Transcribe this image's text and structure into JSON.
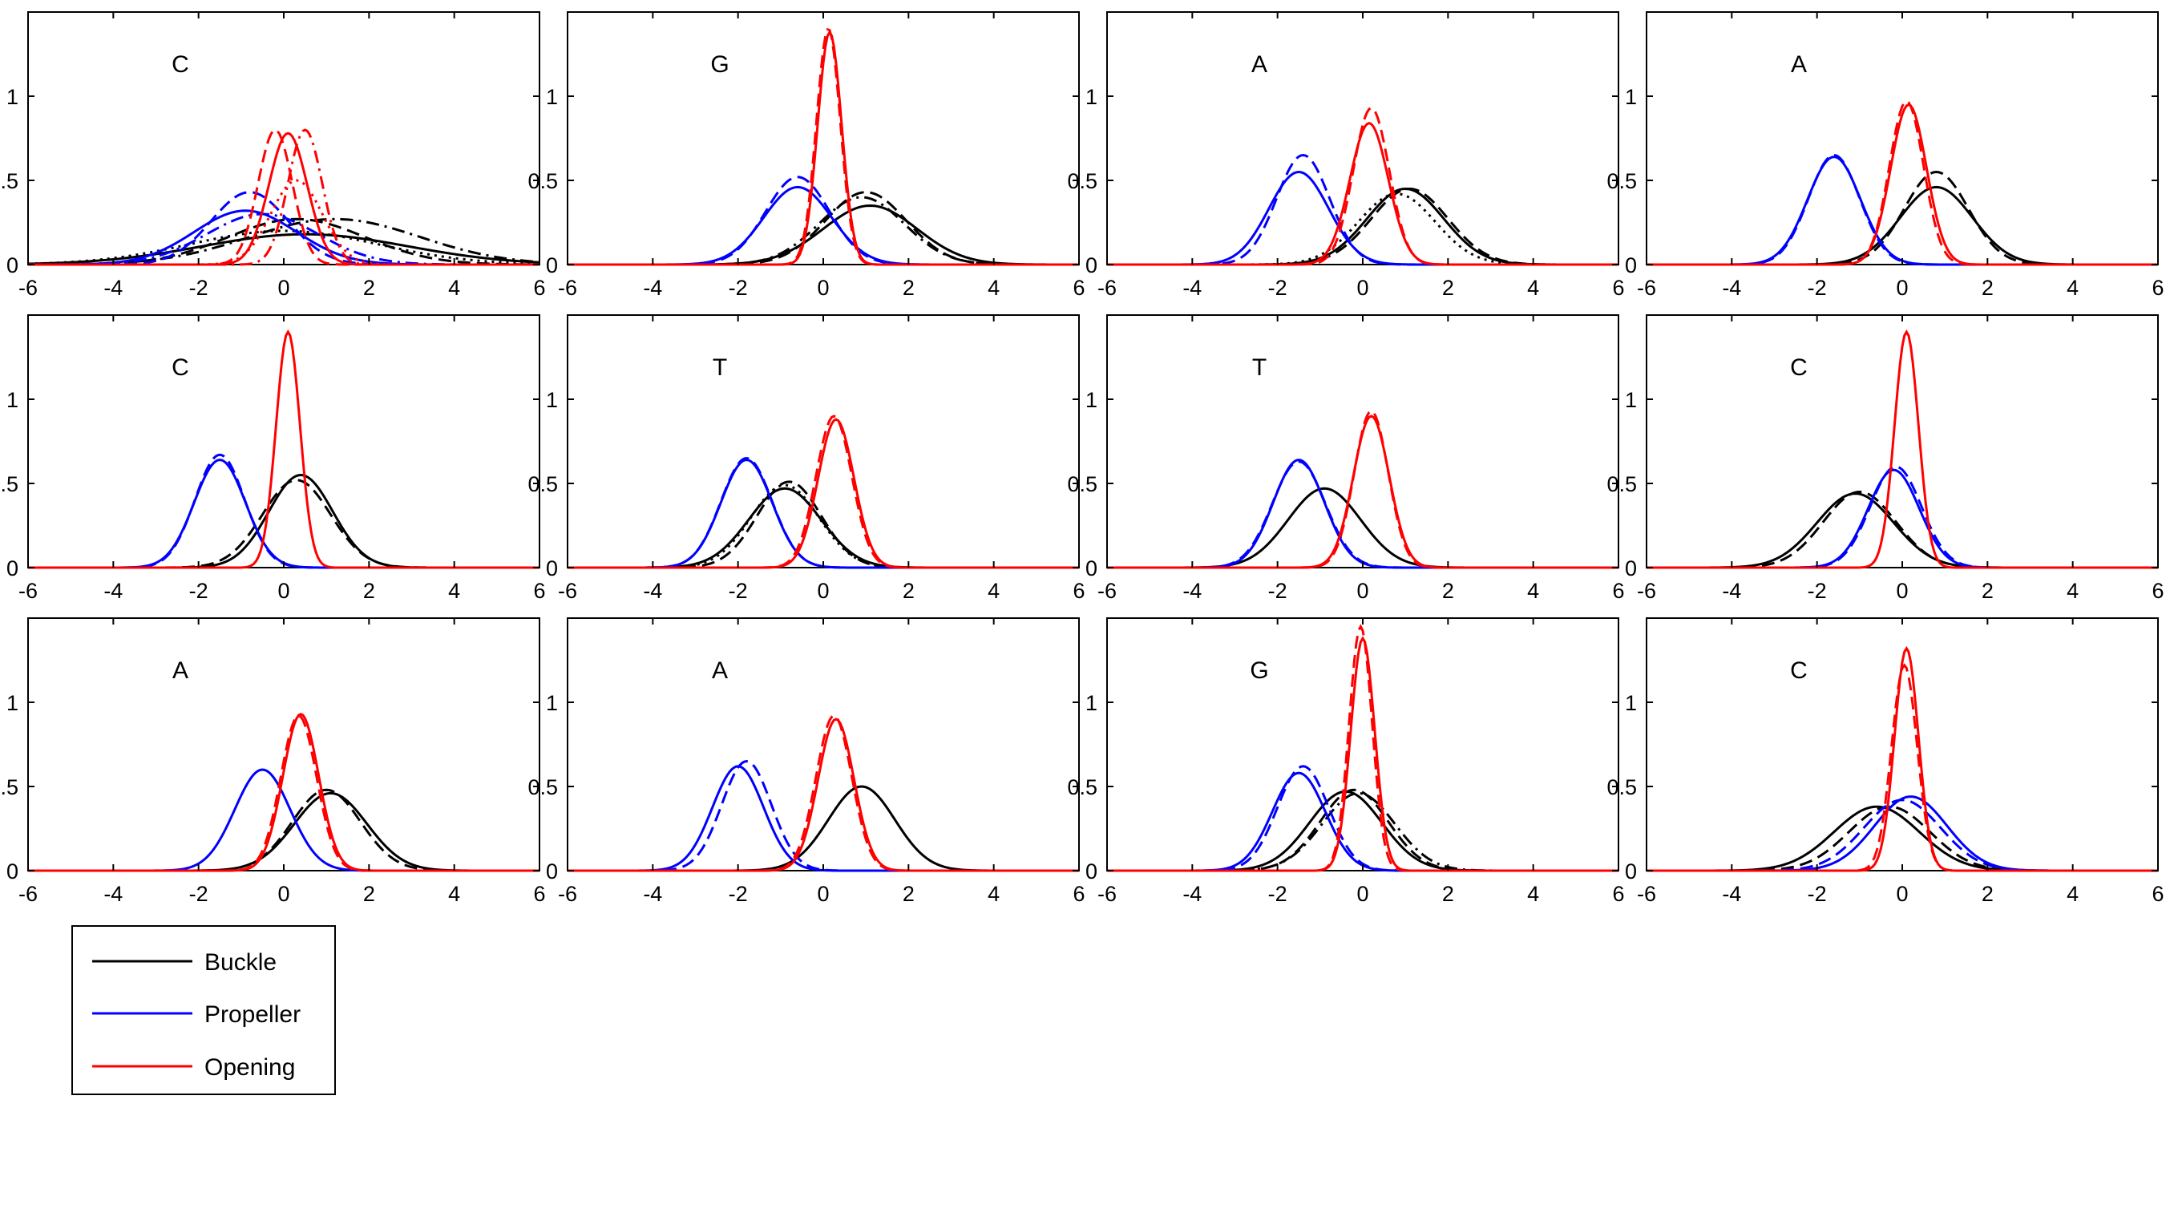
{
  "figure": {
    "legend": [
      {
        "label": "Buckle",
        "color": "#000000"
      },
      {
        "label": "Propeller",
        "color": "#0000ff"
      },
      {
        "label": "Opening",
        "color": "#ff0000"
      }
    ]
  },
  "chart_data": [
    {
      "type": "line",
      "title": "",
      "panel_label": "C",
      "xlim": [
        -6,
        6
      ],
      "ylim": [
        0,
        1.5
      ],
      "xticks": [
        -6,
        -4,
        -2,
        0,
        2,
        4,
        6
      ],
      "yticks": [
        0,
        0.5,
        1
      ],
      "grid": false,
      "series": [
        {
          "name": "Buckle",
          "color": "#000000",
          "variants": [
            {
              "style": "solid",
              "peak": 0.18,
              "mean": 0.5,
              "sd": 2.4
            },
            {
              "style": "dashed",
              "peak": 0.27,
              "mean": 0.3,
              "sd": 1.6
            },
            {
              "style": "dashdot",
              "peak": 0.27,
              "mean": 1.2,
              "sd": 2.0
            },
            {
              "style": "dotted",
              "peak": 0.2,
              "mean": 0.0,
              "sd": 2.2
            }
          ]
        },
        {
          "name": "Propeller",
          "color": "#0000ff",
          "variants": [
            {
              "style": "solid",
              "peak": 0.32,
              "mean": -0.9,
              "sd": 1.2
            },
            {
              "style": "dashed",
              "peak": 0.43,
              "mean": -0.8,
              "sd": 0.9
            },
            {
              "style": "dashdot",
              "peak": 0.3,
              "mean": -0.5,
              "sd": 1.3
            }
          ]
        },
        {
          "name": "Opening",
          "color": "#ff0000",
          "variants": [
            {
              "style": "solid",
              "peak": 0.78,
              "mean": 0.1,
              "sd": 0.45
            },
            {
              "style": "dashed",
              "peak": 0.8,
              "mean": -0.2,
              "sd": 0.4
            },
            {
              "style": "dashdot",
              "peak": 0.8,
              "mean": 0.5,
              "sd": 0.4
            },
            {
              "style": "dotted",
              "peak": 0.5,
              "mean": 0.3,
              "sd": 0.6
            }
          ]
        }
      ]
    },
    {
      "type": "line",
      "title": "",
      "panel_label": "G",
      "xlim": [
        -6,
        6
      ],
      "ylim": [
        0,
        1.5
      ],
      "xticks": [
        -6,
        -4,
        -2,
        0,
        2,
        4,
        6
      ],
      "yticks": [
        0,
        0.5,
        1
      ],
      "grid": false,
      "series": [
        {
          "name": "Buckle",
          "color": "#000000",
          "variants": [
            {
              "style": "solid",
              "peak": 0.35,
              "mean": 1.1,
              "sd": 1.1
            },
            {
              "style": "dashed",
              "peak": 0.43,
              "mean": 1.0,
              "sd": 0.95
            },
            {
              "style": "dashdot",
              "peak": 0.4,
              "mean": 0.9,
              "sd": 1.0
            }
          ]
        },
        {
          "name": "Propeller",
          "color": "#0000ff",
          "variants": [
            {
              "style": "solid",
              "peak": 0.46,
              "mean": -0.6,
              "sd": 0.8
            },
            {
              "style": "dashed",
              "peak": 0.52,
              "mean": -0.6,
              "sd": 0.75
            }
          ]
        },
        {
          "name": "Opening",
          "color": "#ff0000",
          "variants": [
            {
              "style": "solid",
              "peak": 1.38,
              "mean": 0.15,
              "sd": 0.28
            },
            {
              "style": "dashed",
              "peak": 1.4,
              "mean": 0.12,
              "sd": 0.28
            }
          ]
        }
      ]
    },
    {
      "type": "line",
      "title": "",
      "panel_label": "A",
      "xlim": [
        -6,
        6
      ],
      "ylim": [
        0,
        1.5
      ],
      "xticks": [
        -6,
        -4,
        -2,
        0,
        2,
        4,
        6
      ],
      "yticks": [
        0,
        0.5,
        1
      ],
      "grid": false,
      "series": [
        {
          "name": "Buckle",
          "color": "#000000",
          "variants": [
            {
              "style": "solid",
              "peak": 0.45,
              "mean": 1.0,
              "sd": 0.9
            },
            {
              "style": "dashed",
              "peak": 0.45,
              "mean": 1.1,
              "sd": 0.9
            },
            {
              "style": "dotted",
              "peak": 0.42,
              "mean": 0.8,
              "sd": 0.9
            }
          ]
        },
        {
          "name": "Propeller",
          "color": "#0000ff",
          "variants": [
            {
              "style": "solid",
              "peak": 0.55,
              "mean": -1.5,
              "sd": 0.7
            },
            {
              "style": "dashed",
              "peak": 0.65,
              "mean": -1.4,
              "sd": 0.62
            }
          ]
        },
        {
          "name": "Opening",
          "color": "#ff0000",
          "variants": [
            {
              "style": "solid",
              "peak": 0.84,
              "mean": 0.15,
              "sd": 0.45
            },
            {
              "style": "dashed",
              "peak": 0.93,
              "mean": 0.2,
              "sd": 0.42
            }
          ]
        }
      ]
    },
    {
      "type": "line",
      "title": "",
      "panel_label": "A",
      "xlim": [
        -6,
        6
      ],
      "ylim": [
        0,
        1.5
      ],
      "xticks": [
        -6,
        -4,
        -2,
        0,
        2,
        4,
        6
      ],
      "yticks": [
        0,
        0.5,
        1
      ],
      "grid": false,
      "series": [
        {
          "name": "Buckle",
          "color": "#000000",
          "variants": [
            {
              "style": "solid",
              "peak": 0.46,
              "mean": 0.8,
              "sd": 0.85
            },
            {
              "style": "dashed",
              "peak": 0.55,
              "mean": 0.8,
              "sd": 0.75
            }
          ]
        },
        {
          "name": "Propeller",
          "color": "#0000ff",
          "variants": [
            {
              "style": "solid",
              "peak": 0.64,
              "mean": -1.6,
              "sd": 0.62
            },
            {
              "style": "dashed",
              "peak": 0.65,
              "mean": -1.6,
              "sd": 0.6
            }
          ]
        },
        {
          "name": "Opening",
          "color": "#ff0000",
          "variants": [
            {
              "style": "solid",
              "peak": 0.95,
              "mean": 0.15,
              "sd": 0.42
            },
            {
              "style": "dashed",
              "peak": 0.97,
              "mean": 0.1,
              "sd": 0.4
            }
          ]
        }
      ]
    },
    {
      "type": "line",
      "title": "",
      "panel_label": "C",
      "xlim": [
        -6,
        6
      ],
      "ylim": [
        0,
        1.5
      ],
      "xticks": [
        -6,
        -4,
        -2,
        0,
        2,
        4,
        6
      ],
      "yticks": [
        0,
        0.5,
        1
      ],
      "grid": false,
      "series": [
        {
          "name": "Buckle",
          "color": "#000000",
          "variants": [
            {
              "style": "solid",
              "peak": 0.55,
              "mean": 0.4,
              "sd": 0.75
            },
            {
              "style": "dashed",
              "peak": 0.52,
              "mean": 0.3,
              "sd": 0.8
            }
          ]
        },
        {
          "name": "Propeller",
          "color": "#0000ff",
          "variants": [
            {
              "style": "solid",
              "peak": 0.64,
              "mean": -1.5,
              "sd": 0.6
            },
            {
              "style": "dashed",
              "peak": 0.67,
              "mean": -1.5,
              "sd": 0.58
            }
          ]
        },
        {
          "name": "Opening",
          "color": "#ff0000",
          "variants": [
            {
              "style": "solid",
              "peak": 1.4,
              "mean": 0.1,
              "sd": 0.28
            }
          ]
        }
      ]
    },
    {
      "type": "line",
      "title": "",
      "panel_label": "T",
      "xlim": [
        -6,
        6
      ],
      "ylim": [
        0,
        1.5
      ],
      "xticks": [
        -6,
        -4,
        -2,
        0,
        2,
        4,
        6
      ],
      "yticks": [
        0,
        0.5,
        1
      ],
      "grid": false,
      "series": [
        {
          "name": "Buckle",
          "color": "#000000",
          "variants": [
            {
              "style": "solid",
              "peak": 0.47,
              "mean": -0.9,
              "sd": 0.85
            },
            {
              "style": "dashed",
              "peak": 0.51,
              "mean": -0.8,
              "sd": 0.75
            },
            {
              "style": "dotted",
              "peak": 0.49,
              "mean": -0.9,
              "sd": 0.8
            }
          ]
        },
        {
          "name": "Propeller",
          "color": "#0000ff",
          "variants": [
            {
              "style": "solid",
              "peak": 0.64,
              "mean": -1.8,
              "sd": 0.6
            },
            {
              "style": "dashed",
              "peak": 0.65,
              "mean": -1.8,
              "sd": 0.6
            }
          ]
        },
        {
          "name": "Opening",
          "color": "#ff0000",
          "variants": [
            {
              "style": "solid",
              "peak": 0.88,
              "mean": 0.3,
              "sd": 0.42
            },
            {
              "style": "dashed",
              "peak": 0.9,
              "mean": 0.25,
              "sd": 0.42
            }
          ]
        }
      ]
    },
    {
      "type": "line",
      "title": "",
      "panel_label": "T",
      "xlim": [
        -6,
        6
      ],
      "ylim": [
        0,
        1.5
      ],
      "xticks": [
        -6,
        -4,
        -2,
        0,
        2,
        4,
        6
      ],
      "yticks": [
        0,
        0.5,
        1
      ],
      "grid": false,
      "series": [
        {
          "name": "Buckle",
          "color": "#000000",
          "variants": [
            {
              "style": "solid",
              "peak": 0.47,
              "mean": -0.9,
              "sd": 0.85
            }
          ]
        },
        {
          "name": "Propeller",
          "color": "#0000ff",
          "variants": [
            {
              "style": "solid",
              "peak": 0.64,
              "mean": -1.5,
              "sd": 0.6
            },
            {
              "style": "dashed",
              "peak": 0.63,
              "mean": -1.5,
              "sd": 0.62
            }
          ]
        },
        {
          "name": "Opening",
          "color": "#ff0000",
          "variants": [
            {
              "style": "solid",
              "peak": 0.9,
              "mean": 0.2,
              "sd": 0.42
            },
            {
              "style": "dashed",
              "peak": 0.93,
              "mean": 0.2,
              "sd": 0.4
            }
          ]
        }
      ]
    },
    {
      "type": "line",
      "title": "",
      "panel_label": "C",
      "xlim": [
        -6,
        6
      ],
      "ylim": [
        0,
        1.5
      ],
      "xticks": [
        -6,
        -4,
        -2,
        0,
        2,
        4,
        6
      ],
      "yticks": [
        0,
        0.5,
        1
      ],
      "grid": false,
      "series": [
        {
          "name": "Buckle",
          "color": "#000000",
          "variants": [
            {
              "style": "solid",
              "peak": 0.44,
              "mean": -1.1,
              "sd": 0.9
            },
            {
              "style": "dashed",
              "peak": 0.45,
              "mean": -1.0,
              "sd": 0.85
            }
          ]
        },
        {
          "name": "Propeller",
          "color": "#0000ff",
          "variants": [
            {
              "style": "solid",
              "peak": 0.58,
              "mean": -0.2,
              "sd": 0.6
            },
            {
              "style": "dashed",
              "peak": 0.6,
              "mean": -0.15,
              "sd": 0.6
            }
          ]
        },
        {
          "name": "Opening",
          "color": "#ff0000",
          "variants": [
            {
              "style": "solid",
              "peak": 1.4,
              "mean": 0.1,
              "sd": 0.28
            }
          ]
        }
      ]
    },
    {
      "type": "line",
      "title": "",
      "panel_label": "A",
      "xlim": [
        -6,
        6
      ],
      "ylim": [
        0,
        1.5
      ],
      "xticks": [
        -6,
        -4,
        -2,
        0,
        2,
        4,
        6
      ],
      "yticks": [
        0,
        0.5,
        1
      ],
      "grid": false,
      "series": [
        {
          "name": "Buckle",
          "color": "#000000",
          "variants": [
            {
              "style": "solid",
              "peak": 0.46,
              "mean": 1.1,
              "sd": 0.85
            },
            {
              "style": "dashed",
              "peak": 0.48,
              "mean": 1.0,
              "sd": 0.8
            }
          ]
        },
        {
          "name": "Propeller",
          "color": "#0000ff",
          "variants": [
            {
              "style": "solid",
              "peak": 0.6,
              "mean": -0.5,
              "sd": 0.65
            }
          ]
        },
        {
          "name": "Opening",
          "color": "#ff0000",
          "variants": [
            {
              "style": "solid",
              "peak": 0.93,
              "mean": 0.4,
              "sd": 0.42
            },
            {
              "style": "dashed",
              "peak": 0.92,
              "mean": 0.35,
              "sd": 0.42
            }
          ]
        }
      ]
    },
    {
      "type": "line",
      "title": "",
      "panel_label": "A",
      "xlim": [
        -6,
        6
      ],
      "ylim": [
        0,
        1.5
      ],
      "xticks": [
        -6,
        -4,
        -2,
        0,
        2,
        4,
        6
      ],
      "yticks": [
        0,
        0.5,
        1
      ],
      "grid": false,
      "series": [
        {
          "name": "Buckle",
          "color": "#000000",
          "variants": [
            {
              "style": "solid",
              "peak": 0.5,
              "mean": 0.9,
              "sd": 0.78
            }
          ]
        },
        {
          "name": "Propeller",
          "color": "#0000ff",
          "variants": [
            {
              "style": "solid",
              "peak": 0.62,
              "mean": -2.0,
              "sd": 0.6
            },
            {
              "style": "dashed",
              "peak": 0.65,
              "mean": -1.8,
              "sd": 0.58
            }
          ]
        },
        {
          "name": "Opening",
          "color": "#ff0000",
          "variants": [
            {
              "style": "solid",
              "peak": 0.9,
              "mean": 0.3,
              "sd": 0.42
            },
            {
              "style": "dashed",
              "peak": 0.92,
              "mean": 0.25,
              "sd": 0.42
            }
          ]
        }
      ]
    },
    {
      "type": "line",
      "title": "",
      "panel_label": "G",
      "xlim": [
        -6,
        6
      ],
      "ylim": [
        0,
        1.5
      ],
      "xticks": [
        -6,
        -4,
        -2,
        0,
        2,
        4,
        6
      ],
      "yticks": [
        0,
        0.5,
        1
      ],
      "grid": false,
      "series": [
        {
          "name": "Buckle",
          "color": "#000000",
          "variants": [
            {
              "style": "solid",
              "peak": 0.47,
              "mean": -0.4,
              "sd": 0.85
            },
            {
              "style": "dashed",
              "peak": 0.48,
              "mean": -0.2,
              "sd": 0.8
            },
            {
              "style": "dashdot",
              "peak": 0.46,
              "mean": -0.1,
              "sd": 0.85
            }
          ]
        },
        {
          "name": "Propeller",
          "color": "#0000ff",
          "variants": [
            {
              "style": "solid",
              "peak": 0.58,
              "mean": -1.5,
              "sd": 0.62
            },
            {
              "style": "dashed",
              "peak": 0.62,
              "mean": -1.4,
              "sd": 0.6
            }
          ]
        },
        {
          "name": "Opening",
          "color": "#ff0000",
          "variants": [
            {
              "style": "solid",
              "peak": 1.38,
              "mean": 0.0,
              "sd": 0.28
            },
            {
              "style": "dashed",
              "peak": 1.45,
              "mean": -0.05,
              "sd": 0.27
            }
          ]
        }
      ]
    },
    {
      "type": "line",
      "title": "",
      "panel_label": "C",
      "xlim": [
        -6,
        6
      ],
      "ylim": [
        0,
        1.5
      ],
      "xticks": [
        -6,
        -4,
        -2,
        0,
        2,
        4,
        6
      ],
      "yticks": [
        0,
        0.5,
        1
      ],
      "grid": false,
      "series": [
        {
          "name": "Buckle",
          "color": "#000000",
          "variants": [
            {
              "style": "solid",
              "peak": 0.38,
              "mean": -0.6,
              "sd": 1.0
            },
            {
              "style": "dashed",
              "peak": 0.38,
              "mean": -0.3,
              "sd": 0.95
            }
          ]
        },
        {
          "name": "Propeller",
          "color": "#0000ff",
          "variants": [
            {
              "style": "solid",
              "peak": 0.44,
              "mean": 0.2,
              "sd": 0.85
            },
            {
              "style": "dashed",
              "peak": 0.42,
              "mean": 0.0,
              "sd": 0.9
            }
          ]
        },
        {
          "name": "Opening",
          "color": "#ff0000",
          "variants": [
            {
              "style": "solid",
              "peak": 1.32,
              "mean": 0.1,
              "sd": 0.28
            },
            {
              "style": "dashed",
              "peak": 1.22,
              "mean": 0.05,
              "sd": 0.3
            }
          ]
        }
      ]
    }
  ]
}
